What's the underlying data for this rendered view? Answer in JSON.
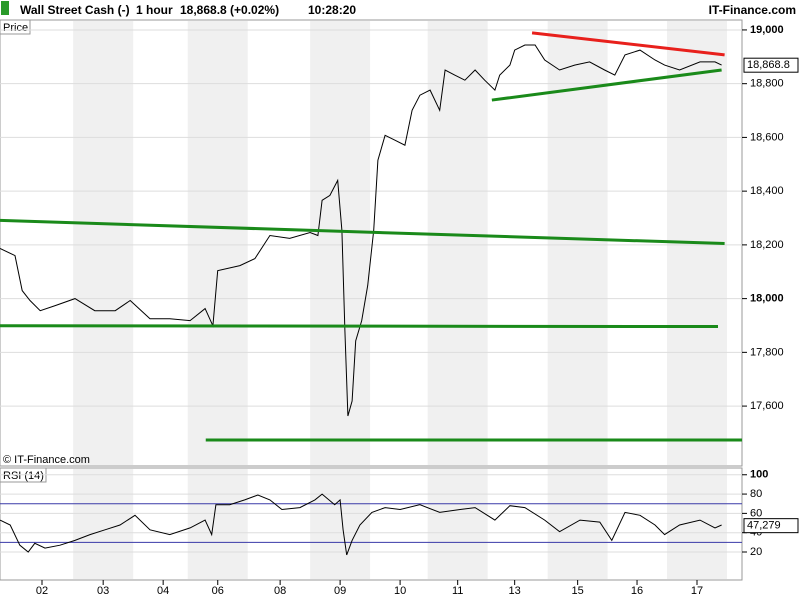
{
  "header": {
    "instrument": "Wall Street Cash (-)",
    "interval": "1 hour",
    "quote": "18,868.8 (+0.02%)",
    "time": "10:28:20",
    "site": "IT-Finance.com"
  },
  "chart_data": [
    {
      "type": "line",
      "label": "Price",
      "watermark": "© IT-Finance.com",
      "x": [
        0,
        0.25,
        0.37,
        0.5,
        0.67,
        0.92,
        1.25,
        1.58,
        1.92,
        2.17,
        2.5,
        2.83,
        3.17,
        3.42,
        3.55,
        3.63,
        4,
        4.25,
        4.5,
        4.83,
        5.17,
        5.3,
        5.37,
        5.5,
        5.63,
        5.7,
        5.75,
        5.8,
        5.87,
        5.93,
        6.03,
        6.13,
        6.23,
        6.3,
        6.42,
        6.58,
        6.75,
        6.87,
        7,
        7.17,
        7.33,
        7.42,
        7.58,
        7.75,
        7.92,
        8.08,
        8.25,
        8.33,
        8.5,
        8.58,
        8.75,
        8.92,
        9.08,
        9.33,
        9.58,
        9.83,
        10.08,
        10.25,
        10.42,
        10.67,
        10.92,
        11.08,
        11.33,
        11.67,
        11.92,
        12.03
      ],
      "series": [
        {
          "color": "#000000",
          "values": [
            18187,
            18160,
            18030,
            17993,
            17955,
            17974,
            18000,
            17955,
            17955,
            17993,
            17925,
            17925,
            17918,
            17963,
            17899,
            18104,
            18123,
            18149,
            18235,
            18224,
            18246,
            18235,
            18366,
            18384,
            18440,
            18254,
            17881,
            17563,
            17619,
            17843,
            17918,
            18049,
            18254,
            18515,
            18608,
            18590,
            18571,
            18701,
            18757,
            18776,
            18701,
            18851,
            18832,
            18813,
            18851,
            18813,
            18776,
            18832,
            18869,
            18925,
            18944,
            18944,
            18888,
            18851,
            18869,
            18881,
            18851,
            18832,
            18907,
            18925,
            18888,
            18869,
            18851,
            18881,
            18881,
            18869
          ]
        }
      ],
      "xlim": [
        0,
        12.37
      ],
      "ylim": [
        17377,
        19037
      ],
      "yticks": [
        {
          "value": 17600,
          "label": "17,600"
        },
        {
          "value": 17800,
          "label": "17,800"
        },
        {
          "value": 18000,
          "label": "18,000"
        },
        {
          "value": 18200,
          "label": "18,200"
        },
        {
          "value": 18400,
          "label": "18,400"
        },
        {
          "value": 18600,
          "label": "18,600"
        },
        {
          "value": 18800,
          "label": "18,800"
        },
        {
          "value": 19000,
          "label": "19,000"
        }
      ],
      "lines": [
        {
          "color": "#e8201c",
          "x": [
            8.87,
            12.08
          ],
          "y": [
            18989,
            18907
          ]
        },
        {
          "color": "#1a8a1a",
          "x": [
            8.2,
            12.03
          ],
          "y": [
            18739,
            18851
          ]
        },
        {
          "color": "#1a8a1a",
          "x": [
            0,
            12.08
          ],
          "y": [
            18291,
            18205
          ]
        },
        {
          "color": "#1a8a1a",
          "x": [
            0,
            11.97
          ],
          "y": [
            17899,
            17896
          ]
        },
        {
          "color": "#1a8a1a",
          "x": [
            3.43,
            12.37
          ],
          "y": [
            17474,
            17474
          ]
        }
      ],
      "last_value": {
        "value": 18868.8,
        "label": "18,868.8"
      }
    },
    {
      "type": "line",
      "label": "RSI (14)",
      "x": [
        0,
        0.17,
        0.33,
        0.47,
        0.58,
        0.75,
        1,
        1.25,
        1.5,
        1.75,
        2,
        2.25,
        2.5,
        2.83,
        3.17,
        3.42,
        3.53,
        3.6,
        3.83,
        4.08,
        4.3,
        4.5,
        4.7,
        5,
        5.25,
        5.37,
        5.58,
        5.67,
        5.72,
        5.78,
        5.87,
        6,
        6.2,
        6.42,
        6.67,
        7,
        7.33,
        7.67,
        7.92,
        8.25,
        8.5,
        8.75,
        9.08,
        9.33,
        9.67,
        10,
        10.2,
        10.42,
        10.67,
        10.92,
        11.08,
        11.33,
        11.67,
        11.92,
        12.03
      ],
      "values": [
        53,
        48,
        27,
        20,
        29,
        24,
        27,
        32,
        38,
        43,
        48,
        58,
        43,
        38,
        45,
        53,
        38,
        69,
        69,
        74,
        79,
        74,
        64,
        66,
        74,
        80,
        69,
        74,
        43,
        17,
        32,
        48,
        61,
        66,
        64,
        69,
        61,
        64,
        66,
        53,
        68,
        66,
        53,
        41,
        53,
        51,
        32,
        61,
        58,
        48,
        38,
        48,
        53,
        45,
        48
      ],
      "color": "#000000",
      "ylim": [
        -9,
        107
      ],
      "yticks": [
        20,
        40,
        60,
        80,
        100
      ],
      "hlines": [
        70,
        30
      ],
      "hline_color": "#3a3aa8",
      "xlim": [
        0,
        12.37
      ],
      "xticks": [
        {
          "value": 0.7,
          "label": "02"
        },
        {
          "value": 1.72,
          "label": "03"
        },
        {
          "value": 2.72,
          "label": "04"
        },
        {
          "value": 3.63,
          "label": "06"
        },
        {
          "value": 4.67,
          "label": "08"
        },
        {
          "value": 5.67,
          "label": "09"
        },
        {
          "value": 6.67,
          "label": "10"
        },
        {
          "value": 7.63,
          "label": "11"
        },
        {
          "value": 8.58,
          "label": "13"
        },
        {
          "value": 9.63,
          "label": "15"
        },
        {
          "value": 10.62,
          "label": "16"
        },
        {
          "value": 11.62,
          "label": "17"
        }
      ],
      "last_value": {
        "value": 47.279,
        "label": "47,279"
      }
    }
  ]
}
